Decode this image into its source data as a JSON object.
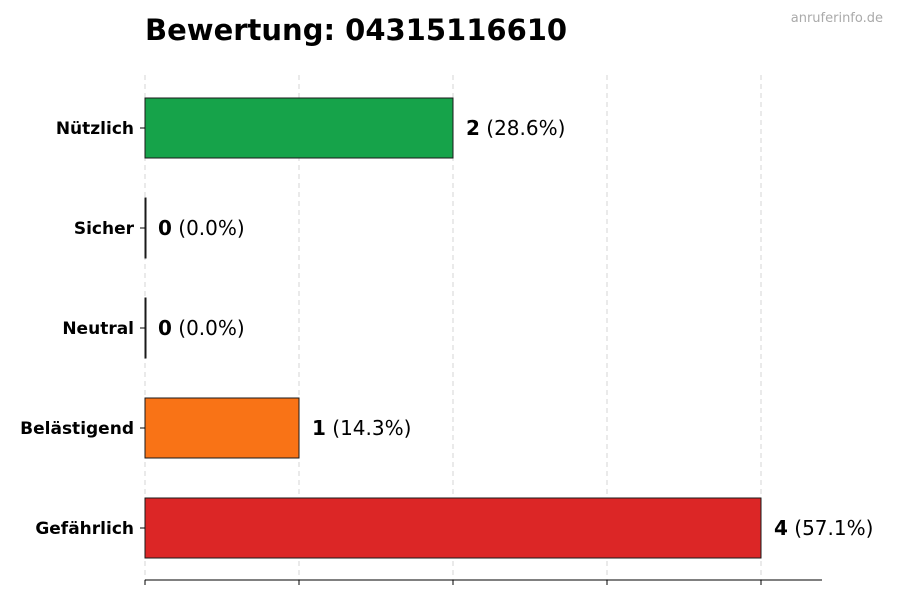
{
  "chart_data": {
    "type": "bar",
    "orientation": "horizontal",
    "title": "Bewertung: 04315116610",
    "watermark": "anruferinfo.de",
    "categories": [
      "Nützlich",
      "Sicher",
      "Neutral",
      "Belästigend",
      "Gefährlich"
    ],
    "values": [
      2,
      0,
      0,
      1,
      4
    ],
    "percent_labels": [
      "(28.6%)",
      "(0.0%)",
      "(0.0%)",
      "(14.3%)",
      "(57.1%)"
    ],
    "colors": [
      "#16a34a",
      "#22c55e",
      "#9ca3af",
      "#f97316",
      "#dc2626"
    ],
    "xlim": [
      0,
      4.4
    ],
    "grid": true,
    "xlabel": "",
    "ylabel": ""
  }
}
